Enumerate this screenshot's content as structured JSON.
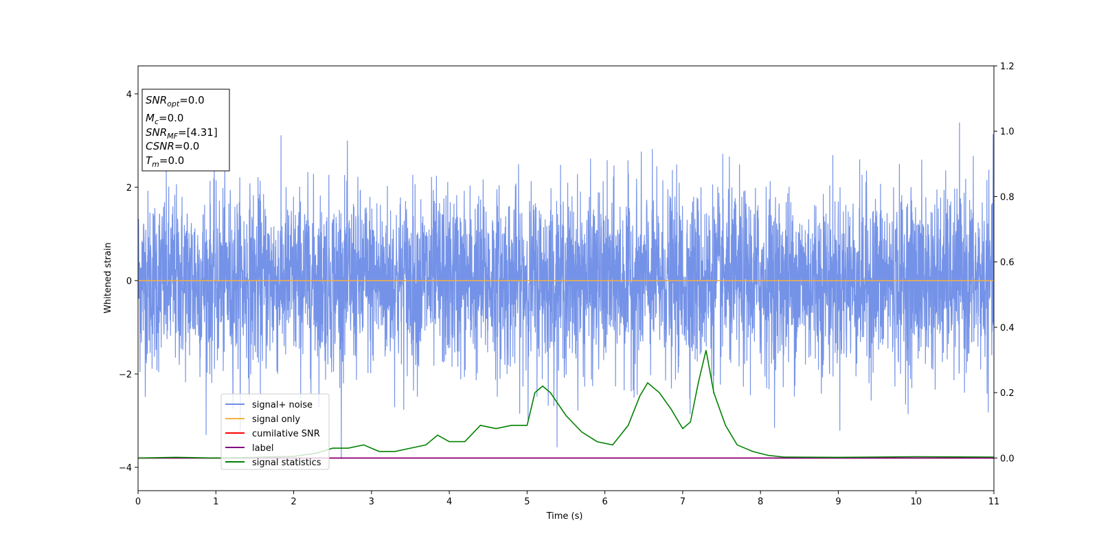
{
  "chart_data": {
    "type": "line",
    "xlabel": "Time (s)",
    "ylabel": "Whitened strain",
    "xlim": [
      0,
      11
    ],
    "ylim_left": [
      -4.5,
      4.6
    ],
    "ylim_right": [
      -0.1,
      1.2
    ],
    "x_ticks": [
      "0",
      "1",
      "2",
      "3",
      "4",
      "5",
      "6",
      "7",
      "8",
      "9",
      "10",
      "11"
    ],
    "y_ticks_left": [
      "4",
      "2",
      "0",
      "−2",
      "−4"
    ],
    "y_ticks_right": [
      "1.2",
      "1.0",
      "0.8",
      "0.6",
      "0.4",
      "0.2",
      "0.0"
    ],
    "grid": false,
    "legend_placement": "lower-left",
    "info_box": {
      "line1": {
        "name": "SNR",
        "sub": "opt",
        "value": "=0.0"
      },
      "line2": {
        "name": "M",
        "sub": "c",
        "value": "=0.0"
      },
      "line3": {
        "name": "SNR",
        "sub": "MF",
        "value": "=[4.31]"
      },
      "line4": {
        "name": "CSNR",
        "sub": "",
        "value": "=0.0"
      },
      "line5": {
        "name": "T",
        "sub": "m",
        "value": "=0.0"
      }
    },
    "series": [
      {
        "name": "signal+ noise",
        "color": "#6d8ce6",
        "axis": "left",
        "description_only": true,
        "noise_band": {
          "typical_abs": 1.6,
          "peak_abs": 4.15
        }
      },
      {
        "name": "signal only",
        "color": "#f5b041",
        "axis": "left",
        "x": [
          0,
          11
        ],
        "y": [
          0,
          0
        ]
      },
      {
        "name": "cumilative SNR",
        "color": "#ff0000",
        "axis": "right",
        "x": [
          0,
          11
        ],
        "y": [
          0,
          0
        ]
      },
      {
        "name": "label",
        "color": "#800080",
        "axis": "right",
        "x": [
          0,
          11
        ],
        "y": [
          0,
          0
        ]
      },
      {
        "name": "signal statistics",
        "color": "#008000",
        "axis": "right",
        "x": [
          0,
          0.5,
          1,
          1.5,
          2,
          2.3,
          2.5,
          2.7,
          2.9,
          3.0,
          3.1,
          3.3,
          3.5,
          3.7,
          3.85,
          4.0,
          4.2,
          4.4,
          4.6,
          4.8,
          5.0,
          5.1,
          5.2,
          5.3,
          5.5,
          5.7,
          5.9,
          6.1,
          6.3,
          6.45,
          6.55,
          6.7,
          6.85,
          7.0,
          7.1,
          7.2,
          7.3,
          7.4,
          7.55,
          7.7,
          7.9,
          8.1,
          8.3,
          9.0,
          10.0,
          11.0
        ],
        "y": [
          0.0,
          0.002,
          0.0,
          0.002,
          0.005,
          0.015,
          0.03,
          0.03,
          0.04,
          0.03,
          0.02,
          0.02,
          0.03,
          0.04,
          0.07,
          0.05,
          0.05,
          0.1,
          0.09,
          0.1,
          0.1,
          0.2,
          0.22,
          0.2,
          0.13,
          0.08,
          0.05,
          0.04,
          0.1,
          0.19,
          0.23,
          0.2,
          0.15,
          0.09,
          0.11,
          0.23,
          0.33,
          0.2,
          0.1,
          0.04,
          0.02,
          0.008,
          0.003,
          0.002,
          0.004,
          0.003
        ]
      }
    ]
  }
}
